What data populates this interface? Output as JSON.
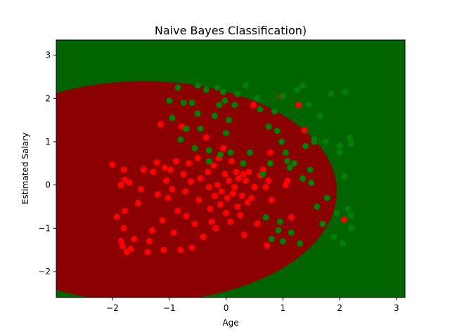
{
  "chart_data": {
    "type": "scatter",
    "title": "Naive Bayes Classification)",
    "xlabel": "Age",
    "ylabel": "Estimated Salary",
    "xlim": [
      -2.99,
      3.15
    ],
    "ylim": [
      -2.6,
      3.35
    ],
    "xticks": [
      -2,
      -1,
      0,
      1,
      2,
      3
    ],
    "yticks": [
      -2,
      -1,
      0,
      1,
      2,
      3
    ],
    "grid": false,
    "regions": [
      {
        "class": "0",
        "color": "#8b0000"
      },
      {
        "class": "1",
        "color": "#006400"
      }
    ],
    "series": [
      {
        "class": "0",
        "color": "#ff0000",
        "points": [
          [
            -2.0,
            0.47
          ],
          [
            -1.92,
            -0.74
          ],
          [
            -1.85,
            0.0
          ],
          [
            -1.8,
            0.35
          ],
          [
            -1.78,
            0.12
          ],
          [
            -1.7,
            0.05
          ],
          [
            -1.78,
            -0.6
          ],
          [
            -1.8,
            -1.0
          ],
          [
            -1.85,
            -1.3
          ],
          [
            -1.82,
            -1.42
          ],
          [
            -1.75,
            -1.55
          ],
          [
            -1.68,
            -1.48
          ],
          [
            -1.62,
            -1.25
          ],
          [
            -1.55,
            -0.42
          ],
          [
            -1.5,
            -0.1
          ],
          [
            -1.45,
            0.35
          ],
          [
            -1.38,
            -1.55
          ],
          [
            -1.35,
            -1.3
          ],
          [
            -1.3,
            -1.05
          ],
          [
            -1.28,
            0.3
          ],
          [
            -1.22,
            0.52
          ],
          [
            -1.2,
            -0.22
          ],
          [
            -1.15,
            1.4
          ],
          [
            -1.12,
            -0.82
          ],
          [
            -1.1,
            -1.5
          ],
          [
            -1.08,
            0.4
          ],
          [
            -1.05,
            0.1
          ],
          [
            -1.02,
            -0.3
          ],
          [
            -0.98,
            0.35
          ],
          [
            -0.95,
            -0.1
          ],
          [
            -0.92,
            -1.1
          ],
          [
            -0.88,
            0.55
          ],
          [
            -0.85,
            -0.6
          ],
          [
            -0.8,
            -1.5
          ],
          [
            -0.78,
            1.35
          ],
          [
            -0.75,
            0.25
          ],
          [
            -0.72,
            -0.15
          ],
          [
            -0.7,
            -0.72
          ],
          [
            -0.65,
            0.5
          ],
          [
            -0.62,
            0.08
          ],
          [
            -0.6,
            -1.45
          ],
          [
            -0.55,
            -0.9
          ],
          [
            -0.5,
            0.62
          ],
          [
            -0.48,
            -0.35
          ],
          [
            -0.45,
            0.15
          ],
          [
            -0.4,
            -1.2
          ],
          [
            -0.35,
            1.1
          ],
          [
            -0.32,
            0.3
          ],
          [
            -0.3,
            -0.05
          ],
          [
            -0.28,
            -0.55
          ],
          [
            -0.25,
            -0.85
          ],
          [
            -0.22,
            0.45
          ],
          [
            -0.2,
            -0.25
          ],
          [
            -0.18,
            -1.0
          ],
          [
            -0.15,
            0.0
          ],
          [
            -0.12,
            0.62
          ],
          [
            -0.1,
            -0.45
          ],
          [
            -0.08,
            -0.15
          ],
          [
            -0.05,
            0.85
          ],
          [
            -0.02,
            0.25
          ],
          [
            0.0,
            -0.65
          ],
          [
            0.02,
            -0.3
          ],
          [
            0.05,
            0.1
          ],
          [
            0.08,
            -0.85
          ],
          [
            0.1,
            0.55
          ],
          [
            0.12,
            -0.2
          ],
          [
            0.15,
            -0.05
          ],
          [
            0.18,
            0.3
          ],
          [
            0.2,
            -0.5
          ],
          [
            0.22,
            0.15
          ],
          [
            0.25,
            -0.7
          ],
          [
            0.28,
            -0.25
          ],
          [
            0.3,
            0.25
          ],
          [
            0.32,
            -1.15
          ],
          [
            0.35,
            0.1
          ],
          [
            0.38,
            -0.4
          ],
          [
            0.4,
            0.3
          ],
          [
            0.45,
            -0.3
          ],
          [
            0.48,
            1.85
          ],
          [
            0.5,
            -0.05
          ],
          [
            0.55,
            -0.9
          ],
          [
            0.6,
            0.22
          ],
          [
            0.65,
            0.35
          ],
          [
            0.7,
            -0.05
          ],
          [
            0.72,
            -1.4
          ],
          [
            0.75,
            0.1
          ],
          [
            0.78,
            0.75
          ],
          [
            0.8,
            -0.35
          ],
          [
            0.98,
            2.05
          ],
          [
            1.05,
            0.0
          ],
          [
            1.08,
            0.1
          ],
          [
            1.15,
            -0.75
          ],
          [
            1.28,
            1.85
          ],
          [
            1.38,
            1.27
          ],
          [
            2.08,
            -0.8
          ]
        ]
      },
      {
        "class": "1",
        "color": "#008000",
        "points": [
          [
            -1.0,
            1.95
          ],
          [
            -0.95,
            1.55
          ],
          [
            -0.85,
            2.25
          ],
          [
            -0.8,
            1.05
          ],
          [
            -0.75,
            1.9
          ],
          [
            -0.7,
            1.3
          ],
          [
            -0.6,
            1.9
          ],
          [
            -0.55,
            0.85
          ],
          [
            -0.5,
            1.65
          ],
          [
            -0.5,
            2.3
          ],
          [
            -0.45,
            1.3
          ],
          [
            -0.35,
            2.2
          ],
          [
            -0.3,
            0.8
          ],
          [
            -0.3,
            0.55
          ],
          [
            -0.2,
            1.6
          ],
          [
            -0.15,
            2.25
          ],
          [
            -0.12,
            1.85
          ],
          [
            -0.1,
            0.7
          ],
          [
            -0.05,
            2.15
          ],
          [
            -0.02,
            1.95
          ],
          [
            0.0,
            1.2
          ],
          [
            0.05,
            1.5
          ],
          [
            0.08,
            0.75
          ],
          [
            0.15,
            1.85
          ],
          [
            0.2,
            2.1
          ],
          [
            0.3,
            0.5
          ],
          [
            0.35,
            2.3
          ],
          [
            0.42,
            0.75
          ],
          [
            0.55,
            2.0
          ],
          [
            0.6,
            1.75
          ],
          [
            0.65,
            0.25
          ],
          [
            0.7,
            -0.75
          ],
          [
            0.75,
            1.35
          ],
          [
            0.78,
            0.5
          ],
          [
            0.8,
            -1.25
          ],
          [
            0.85,
            1.7
          ],
          [
            0.9,
            1.25
          ],
          [
            0.92,
            -1.05
          ],
          [
            0.95,
            -0.85
          ],
          [
            0.98,
            1.0
          ],
          [
            1.0,
            2.05
          ],
          [
            1.0,
            -1.3
          ],
          [
            1.05,
            0.75
          ],
          [
            1.08,
            0.55
          ],
          [
            1.12,
            0.4
          ],
          [
            1.15,
            -1.1
          ],
          [
            1.2,
            0.5
          ],
          [
            1.25,
            2.2
          ],
          [
            1.3,
            -1.35
          ],
          [
            1.35,
            2.3
          ],
          [
            1.35,
            0.15
          ],
          [
            1.4,
            0.9
          ],
          [
            1.45,
            1.85
          ],
          [
            1.48,
            0.35
          ],
          [
            1.5,
            0.05
          ],
          [
            1.55,
            1.05
          ],
          [
            1.55,
            1.0
          ],
          [
            1.6,
            -0.5
          ],
          [
            1.65,
            1.6
          ],
          [
            1.7,
            -0.9
          ],
          [
            1.75,
            1.0
          ],
          [
            1.78,
            -0.3
          ],
          [
            1.85,
            2.1
          ],
          [
            1.9,
            -1.2
          ],
          [
            1.95,
            -0.65
          ],
          [
            2.0,
            0.9
          ],
          [
            2.0,
            0.75
          ],
          [
            2.05,
            -1.35
          ],
          [
            2.08,
            0.2
          ],
          [
            2.1,
            2.15
          ],
          [
            2.15,
            -0.55
          ],
          [
            2.18,
            1.1
          ],
          [
            2.2,
            0.95
          ],
          [
            2.2,
            -1.0
          ],
          [
            2.2,
            -0.7
          ]
        ]
      }
    ]
  }
}
